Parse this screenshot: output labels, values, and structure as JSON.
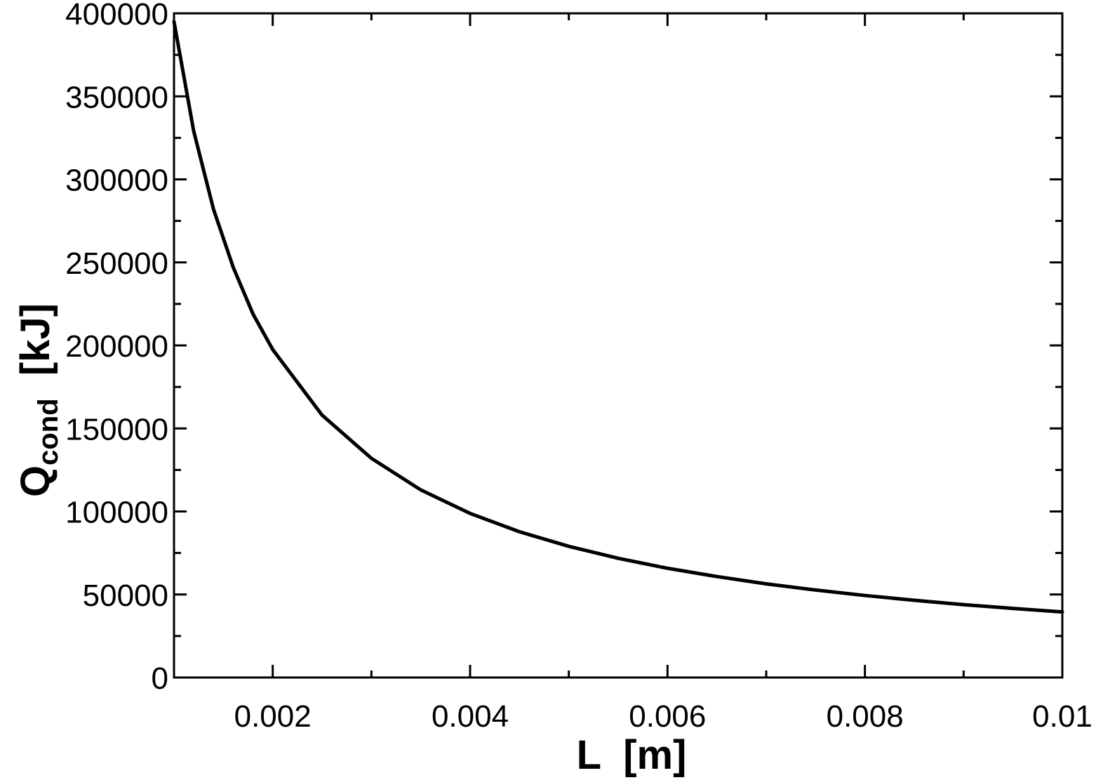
{
  "chart_data": {
    "type": "line",
    "xlabel": "L  [m]",
    "ylabel": {
      "main": "Q",
      "subscript": "cond",
      "unit": "  [kJ]"
    },
    "xlim": [
      0.001,
      0.01
    ],
    "ylim": [
      0,
      400000
    ],
    "x_ticks": [
      0.002,
      0.004,
      0.006,
      0.008,
      0.01
    ],
    "x_tick_labels": [
      "0.002",
      "0.004",
      "0.006",
      "0.008",
      "0.01"
    ],
    "x_minor_ticks": [
      0.001,
      0.003,
      0.005,
      0.007,
      0.009
    ],
    "y_ticks": [
      0,
      50000,
      100000,
      150000,
      200000,
      250000,
      300000,
      350000,
      400000
    ],
    "y_tick_labels": [
      "0",
      "50000",
      "100000",
      "150000",
      "200000",
      "250000",
      "300000",
      "350000",
      "400000"
    ],
    "y_minor_ticks": [
      25000,
      75000,
      125000,
      175000,
      225000,
      275000,
      325000,
      375000
    ],
    "grid": false,
    "line_color": "#000000",
    "series": [
      {
        "x": [
          0.001,
          0.0012,
          0.0014,
          0.0016,
          0.0018,
          0.002,
          0.0025,
          0.003,
          0.0035,
          0.004,
          0.0045,
          0.005,
          0.0055,
          0.006,
          0.0065,
          0.007,
          0.0075,
          0.008,
          0.0085,
          0.009,
          0.0095,
          0.01
        ],
        "values": [
          395000,
          329000,
          282000,
          247000,
          219000,
          197500,
          158000,
          132000,
          113000,
          98800,
          87800,
          79000,
          71800,
          65800,
          60800,
          56400,
          52700,
          49400,
          46500,
          43900,
          41600,
          39500
        ]
      }
    ]
  }
}
